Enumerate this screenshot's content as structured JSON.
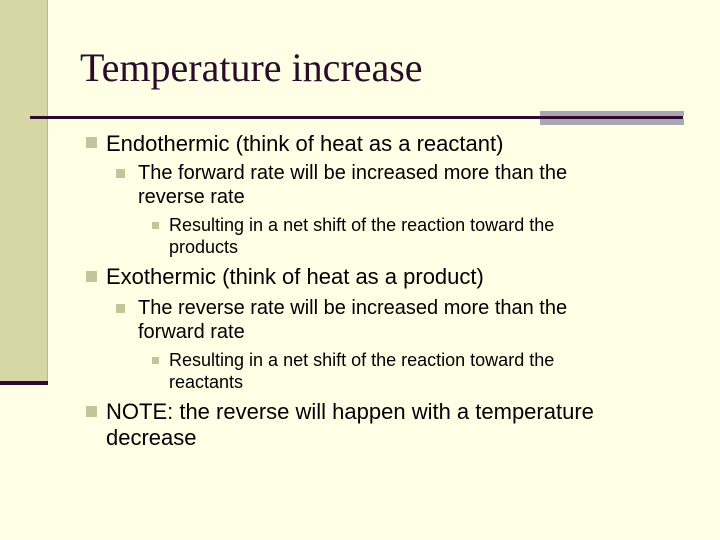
{
  "slide": {
    "title": "Temperature increase",
    "endo": {
      "heading": "Endothermic (think of heat as a reactant)",
      "sub_line1": "The forward rate will be increased more than the",
      "sub_line2": "reverse rate",
      "detail_line1": "Resulting in a net shift of the reaction toward the",
      "detail_line2": "products"
    },
    "exo": {
      "heading": "Exothermic (think of heat as a product)",
      "sub_line1": "The reverse rate will be increased more than the",
      "sub_line2": "forward rate",
      "detail_line1": "Resulting in a net shift of the reaction toward the",
      "detail_line2": "reactants"
    },
    "note": {
      "line1": "NOTE: the reverse will happen with a temperature",
      "line2": "decrease"
    }
  },
  "colors": {
    "background": "#ffffe5",
    "title": "#2a0c2a",
    "accent_bar": "#d7d7a6",
    "rule": "#2e0a2e",
    "bullet": "#c4c49a"
  }
}
